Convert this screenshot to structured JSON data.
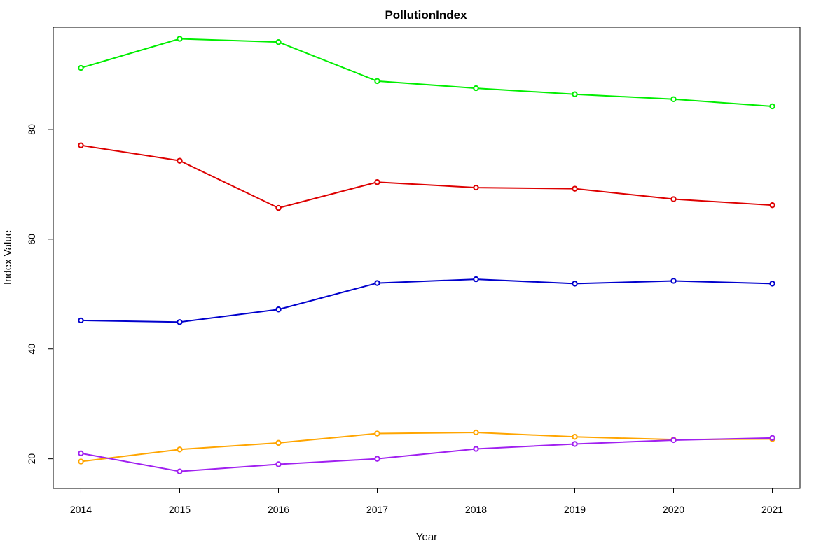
{
  "chart_data": {
    "type": "line",
    "title": "PollutionIndex",
    "xlabel": "Year",
    "ylabel": "Index Value",
    "x": [
      2014,
      2015,
      2016,
      2017,
      2018,
      2019,
      2020,
      2021
    ],
    "xticks": [
      "2014",
      "2015",
      "2016",
      "2017",
      "2018",
      "2019",
      "2020",
      "2021"
    ],
    "yticks": [
      "20",
      "40",
      "60",
      "80"
    ],
    "ytick_values": [
      20,
      40,
      60,
      80
    ],
    "xlim": [
      2013.72,
      2021.28
    ],
    "ylim": [
      14.6,
      98.6
    ],
    "grid": false,
    "legend": "none",
    "series": [
      {
        "color": "#00ee00",
        "values": [
          91.2,
          96.5,
          95.9,
          88.8,
          87.5,
          86.4,
          85.5,
          84.2
        ]
      },
      {
        "color": "#dd0000",
        "values": [
          77.1,
          74.3,
          65.7,
          70.4,
          69.4,
          69.2,
          67.3,
          66.2
        ]
      },
      {
        "color": "#0000cc",
        "values": [
          45.2,
          44.9,
          47.2,
          52.0,
          52.7,
          51.9,
          52.4,
          51.9
        ]
      },
      {
        "color": "#ffa500",
        "values": [
          19.5,
          21.7,
          22.9,
          24.6,
          24.8,
          24.0,
          23.5,
          23.6
        ]
      },
      {
        "color": "#a020f0",
        "values": [
          21.0,
          17.7,
          19.0,
          20.0,
          21.8,
          22.7,
          23.4,
          23.8
        ]
      }
    ]
  }
}
